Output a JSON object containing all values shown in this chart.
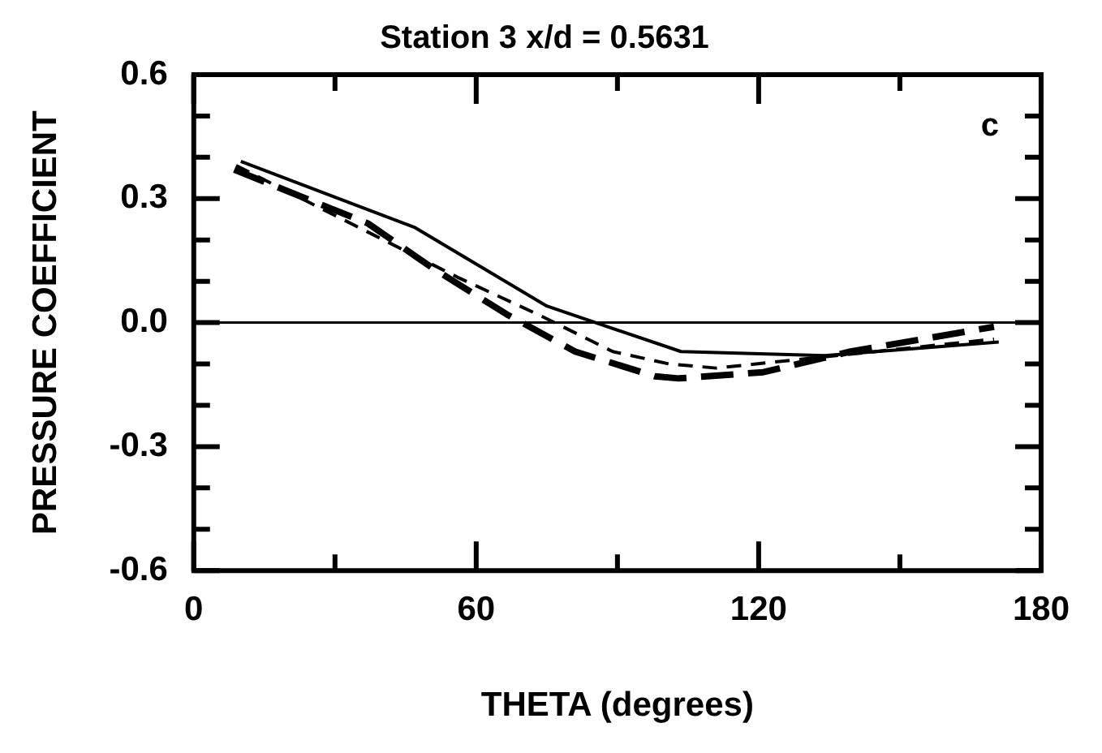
{
  "chart_data": {
    "type": "line",
    "title": "Station 3 x/d = 0.5631",
    "xlabel": "THETA (degrees)",
    "ylabel": "PRESSURE COEFFICIENT",
    "annotations": [
      "c"
    ],
    "xlim": [
      0,
      180
    ],
    "xticks": [
      0,
      {
        "value": 30,
        "label": null
      },
      60,
      {
        "value": 90,
        "label": null
      },
      120,
      {
        "value": 150,
        "label": null
      },
      180
    ],
    "ylim": [
      -0.6,
      0.6
    ],
    "yticks": [
      -0.6,
      {
        "value": -0.5,
        "label": null
      },
      {
        "value": -0.4,
        "label": null
      },
      -0.3,
      {
        "value": -0.2,
        "label": null
      },
      {
        "value": -0.1,
        "label": null
      },
      {
        "value": 0,
        "label": "0.0"
      },
      {
        "value": 0.1,
        "label": null
      },
      {
        "value": 0.2,
        "label": null
      },
      0.3,
      {
        "value": 0.4,
        "label": null
      },
      {
        "value": 0.5,
        "label": null
      },
      0.6
    ],
    "grid": false,
    "legend": false,
    "marker": "none",
    "ref_lines": [
      {
        "axis": "y",
        "value": 0,
        "color": "#000000",
        "line_style": "solid"
      }
    ],
    "series": [
      {
        "color": "#000000",
        "line_style": "solid",
        "x": [
          10,
          47,
          75,
          103.5,
          134,
          171
        ],
        "values": [
          0.39,
          0.23,
          0.04,
          -0.07,
          -0.08,
          -0.047
        ]
      },
      {
        "color": "#000000",
        "line_style": "dashed",
        "x": [
          9,
          56,
          74,
          89,
          101,
          111,
          170
        ],
        "values": [
          0.38,
          0.11,
          0.015,
          -0.07,
          -0.1,
          -0.11,
          -0.04
        ]
      },
      {
        "color": "#000000",
        "line_style": "dashed",
        "x": [
          8.6,
          37,
          51,
          66.5,
          81,
          98,
          103,
          121,
          139.5,
          170
        ],
        "values": [
          0.37,
          0.24,
          0.13,
          0.02,
          -0.07,
          -0.13,
          -0.135,
          -0.12,
          -0.07,
          -0.01
        ]
      }
    ]
  }
}
